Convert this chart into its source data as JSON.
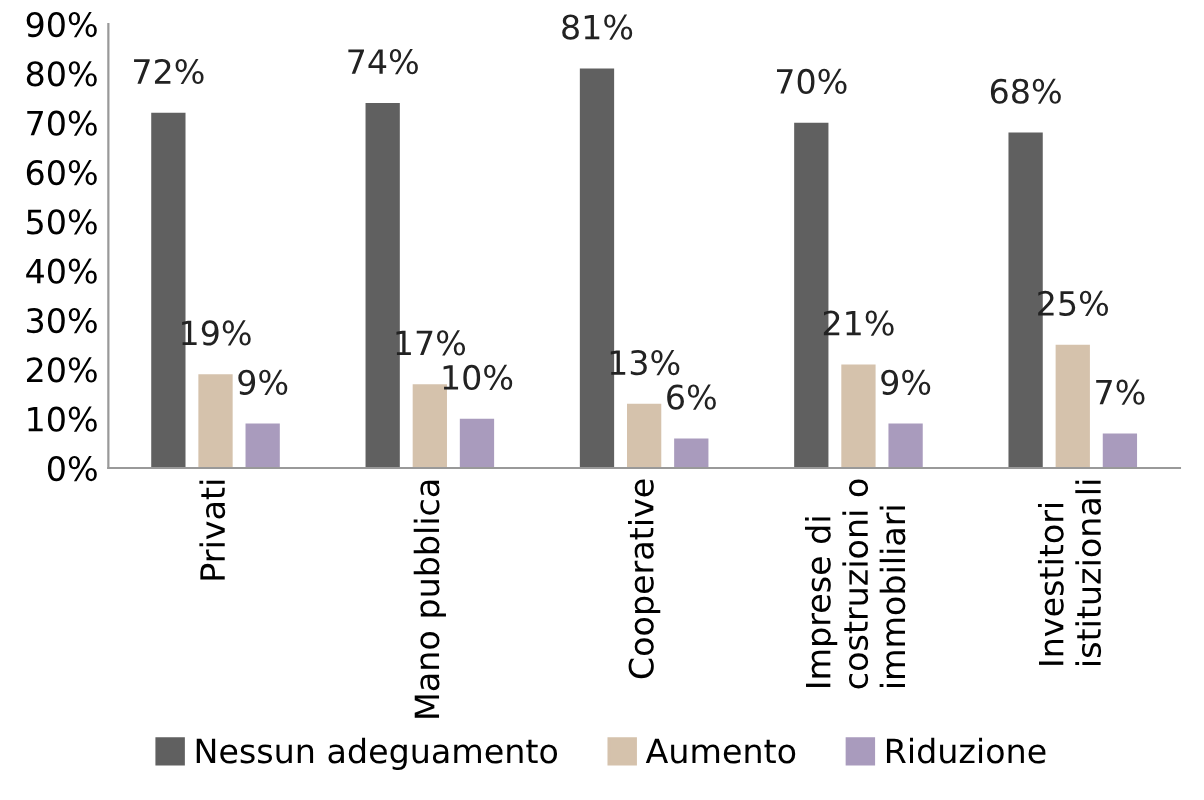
{
  "chart_data": {
    "type": "bar",
    "categories": [
      "Privati",
      "Mano pubblica",
      "Cooperative",
      "Imprese di\ncostruzioni o\nimmobiliari",
      "Investitori\nistituzionali"
    ],
    "series": [
      {
        "name": "Nessun adeguamento",
        "color": "#606060",
        "values": [
          72,
          74,
          81,
          70,
          68
        ],
        "value_labels": [
          "72%",
          "74%",
          "81%",
          "70%",
          "68%"
        ]
      },
      {
        "name": "Aumento",
        "color": "#d5c2ac",
        "values": [
          19,
          17,
          13,
          21,
          25
        ],
        "value_labels": [
          "19%",
          "17%",
          "13%",
          "21%",
          "25%"
        ]
      },
      {
        "name": "Riduzione",
        "color": "#a99bbd",
        "values": [
          9,
          10,
          6,
          9,
          7
        ],
        "value_labels": [
          "9%",
          "10%",
          "6%",
          "9%",
          "7%"
        ]
      }
    ],
    "ylim": [
      0,
      90
    ],
    "yticks": [
      {
        "value": 0,
        "label": "0%"
      },
      {
        "value": 10,
        "label": "10%"
      },
      {
        "value": 20,
        "label": "20%"
      },
      {
        "value": 30,
        "label": "30%"
      },
      {
        "value": 40,
        "label": "40%"
      },
      {
        "value": 50,
        "label": "50%"
      },
      {
        "value": 60,
        "label": "60%"
      },
      {
        "value": 70,
        "label": "70%"
      },
      {
        "value": 80,
        "label": "80%"
      },
      {
        "value": 90,
        "label": "90%"
      }
    ],
    "grid": false,
    "legend": "bottom"
  }
}
